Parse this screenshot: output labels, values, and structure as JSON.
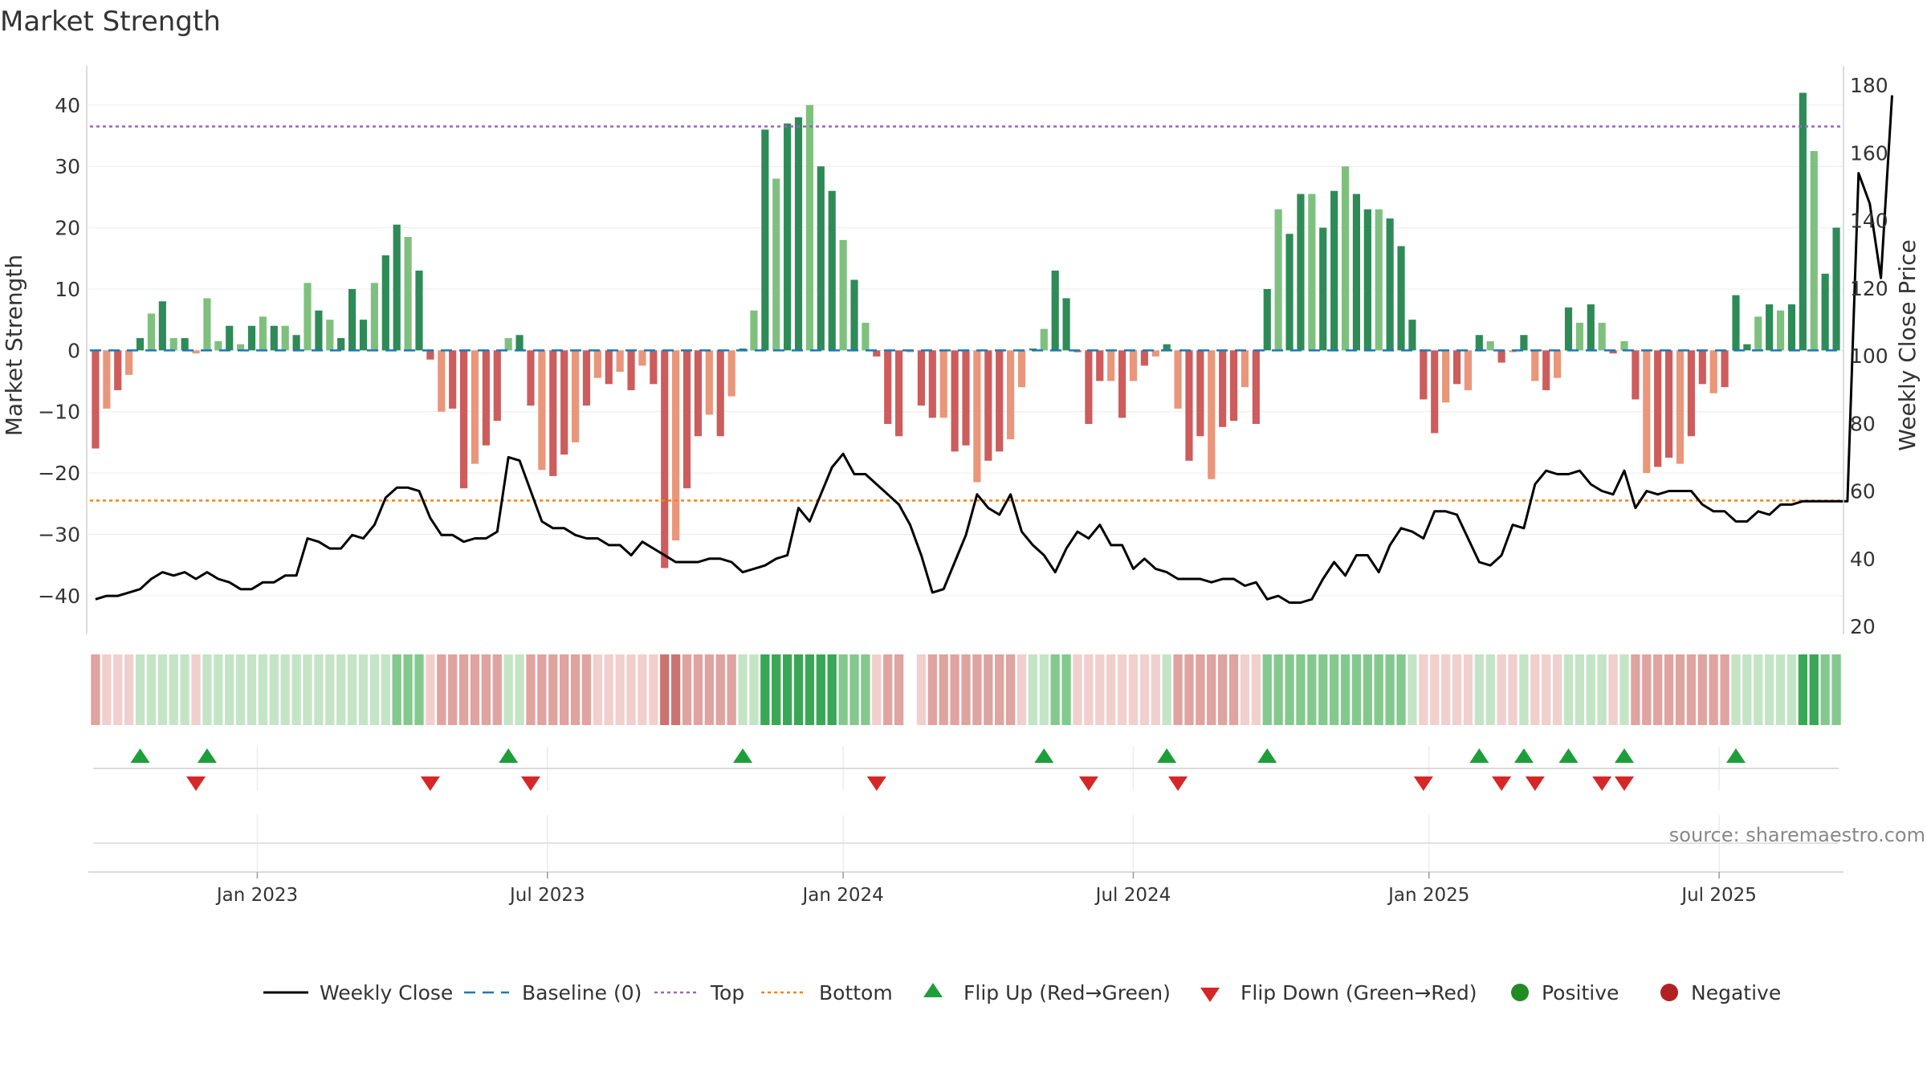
{
  "chart_data": {
    "type": "bar",
    "title": "Market Strength",
    "ylabel_left": "Market Strength",
    "ylabel_right": "Weekly Close Price",
    "ylim_left": [
      -45,
      46
    ],
    "ylim_right": [
      20,
      185
    ],
    "left_ticks": [
      40,
      30,
      20,
      10,
      0,
      -10,
      -20,
      -30,
      -40
    ],
    "right_ticks": [
      180,
      160,
      140,
      120,
      100,
      80,
      60,
      40,
      20
    ],
    "top_line": 36.5,
    "bottom_line": -24.5,
    "x_tick_labels": [
      "Jan 2023",
      "Jul 2023",
      "Jan 2024",
      "Jul 2024",
      "Jan 2025",
      "Jul 2025"
    ],
    "x_tick_weeks": [
      15,
      41,
      67.5,
      93.5,
      120,
      146
    ],
    "grid": true,
    "legend_placement": "bottom",
    "strength": [
      -16,
      -9.5,
      -6.5,
      -4,
      2,
      6,
      8,
      2,
      2,
      -0.5,
      8.5,
      1.5,
      4,
      1,
      4,
      5.5,
      4,
      4,
      2.5,
      11,
      6.5,
      5,
      2,
      10,
      5,
      11,
      15.5,
      20.5,
      18.5,
      13,
      -1.5,
      -10,
      -9.5,
      -22.5,
      -18.5,
      -15.5,
      -11.5,
      2,
      2.5,
      -9,
      -19.5,
      -20.5,
      -17,
      -15,
      -9,
      -4.5,
      -5.5,
      -3.5,
      -6.5,
      -2.5,
      -5.5,
      -35.5,
      -31,
      -22.5,
      -14,
      -10.5,
      -14,
      -7.5,
      0.3,
      6.5,
      36,
      28,
      37,
      38,
      40,
      30,
      26,
      18,
      11.5,
      4.5,
      -1,
      -12,
      -14,
      -0.3,
      -9,
      -11,
      -11,
      -16.5,
      -15.5,
      -21.5,
      -18,
      -16.5,
      -14.5,
      -6,
      0.3,
      3.5,
      13,
      8.5,
      -0.3,
      -12,
      -5,
      -5,
      -11,
      -5,
      -2.5,
      -1,
      1,
      -9.5,
      -18,
      -14,
      -21,
      -12.5,
      -11.5,
      -6,
      -12,
      10,
      23,
      19,
      25.5,
      25.5,
      20,
      26,
      30,
      25.5,
      23,
      23,
      21.5,
      17,
      5,
      -8,
      -13.5,
      -8.5,
      -5.5,
      -6.5,
      2.5,
      1.5,
      -2,
      -0.3,
      2.5,
      -5,
      -6.5,
      -4.5,
      7,
      4.5,
      7.5,
      4.5,
      -0.5,
      1.5,
      -8,
      -20,
      -19,
      -17.5,
      -18.5,
      -14,
      -5.5,
      -7,
      -6,
      9,
      1,
      5.5,
      7.5,
      6.5,
      7.5,
      42,
      32.5,
      12.5,
      20
    ],
    "weekly_close": [
      28,
      29,
      29,
      30,
      31,
      34,
      36,
      35,
      36,
      34,
      36,
      34,
      33,
      31,
      31,
      33,
      33,
      35,
      35,
      46,
      45,
      43,
      43,
      47,
      46,
      50,
      58,
      61,
      61,
      60,
      52,
      47,
      47,
      45,
      46,
      46,
      48,
      70,
      69,
      60,
      51,
      49,
      49,
      47,
      46,
      46,
      44,
      44,
      41,
      45,
      43,
      41,
      39,
      39,
      39,
      40,
      40,
      39,
      36,
      37,
      38,
      40,
      41,
      55,
      51,
      59,
      67,
      71,
      65,
      65,
      62,
      59,
      56,
      50,
      41,
      30,
      31,
      39,
      47,
      59,
      55,
      53,
      59,
      48,
      44,
      41,
      36,
      43,
      48,
      46,
      50,
      44,
      44,
      37,
      40,
      37,
      36,
      34,
      34,
      34,
      33,
      34,
      34,
      32,
      33,
      28,
      29,
      27,
      27,
      28,
      34,
      39,
      35,
      41,
      41,
      36,
      44,
      49,
      48,
      46,
      54,
      54,
      53,
      46,
      39,
      38,
      41,
      50,
      49,
      62,
      66,
      65,
      65,
      66,
      62,
      60,
      59,
      66,
      55,
      60,
      59,
      60,
      60,
      60,
      56,
      54,
      54,
      51,
      51,
      54,
      53,
      56,
      56,
      57,
      57,
      57,
      57,
      57,
      154,
      145,
      123,
      177
    ],
    "state_levels": [
      -2,
      -1,
      -1,
      -1,
      1,
      1,
      1,
      1,
      1,
      -1,
      1,
      1,
      1,
      1,
      1,
      1,
      1,
      1,
      1,
      1,
      1,
      1,
      1,
      1,
      1,
      1,
      1,
      2,
      2,
      2,
      -1,
      -2,
      -2,
      -2,
      -2,
      -2,
      -2,
      1,
      1,
      -2,
      -2,
      -2,
      -2,
      -2,
      -2,
      -1,
      -1,
      -1,
      -1,
      -1,
      -1,
      -3,
      -3,
      -2,
      -2,
      -2,
      -2,
      -2,
      1,
      1,
      3,
      3,
      3,
      3,
      3,
      3,
      3,
      2,
      2,
      2,
      -1,
      -2,
      -2,
      0,
      -1,
      -2,
      -2,
      -2,
      -2,
      -2,
      -2,
      -2,
      -2,
      -1,
      1,
      1,
      2,
      2,
      -1,
      -1,
      -1,
      -1,
      -1,
      -1,
      -1,
      -1,
      1,
      -2,
      -2,
      -2,
      -2,
      -2,
      -2,
      -1,
      -1,
      2,
      2,
      2,
      2,
      2,
      2,
      2,
      2,
      2,
      2,
      2,
      2,
      2,
      1,
      -1,
      -1,
      -1,
      -1,
      -1,
      1,
      1,
      -1,
      -1,
      1,
      -1,
      -1,
      -1,
      1,
      1,
      1,
      1,
      -1,
      1,
      -2,
      -2,
      -2,
      -2,
      -2,
      -2,
      -2,
      -2,
      -2,
      1,
      1,
      1,
      1,
      1,
      1,
      3,
      3,
      2,
      2
    ],
    "flip_up_weeks": [
      4,
      10,
      37,
      58,
      85,
      96,
      105,
      124,
      128,
      132,
      137,
      147
    ],
    "flip_down_weeks": [
      9,
      30,
      39,
      70,
      89,
      97,
      119,
      126,
      129,
      135,
      137
    ],
    "colors": {
      "pos_strong": "#2e8b57",
      "pos_light": "#7fc07f",
      "neg_strong": "#cd5c5c",
      "neg_light": "#e9967a",
      "close_line": "#000000",
      "baseline": "#1f77b4",
      "top_line": "#9467bd",
      "bottom_line": "#ff7f0e",
      "flip_up": "#1e9e3a",
      "flip_down": "#d62728",
      "positive_marker": "#228b22",
      "negative_marker": "#b22222"
    }
  },
  "watermark": "source: sharemaestro.com",
  "legend": {
    "items": [
      {
        "key": "weekly_close",
        "label": "Weekly Close"
      },
      {
        "key": "baseline",
        "label": "Baseline (0)"
      },
      {
        "key": "top",
        "label": "Top"
      },
      {
        "key": "bottom",
        "label": "Bottom"
      },
      {
        "key": "flip_up",
        "label": "Flip Up (Red→Green)"
      },
      {
        "key": "flip_down",
        "label": "Flip Down (Green→Red)"
      },
      {
        "key": "positive",
        "label": "Positive"
      },
      {
        "key": "negative",
        "label": "Negative"
      }
    ]
  }
}
